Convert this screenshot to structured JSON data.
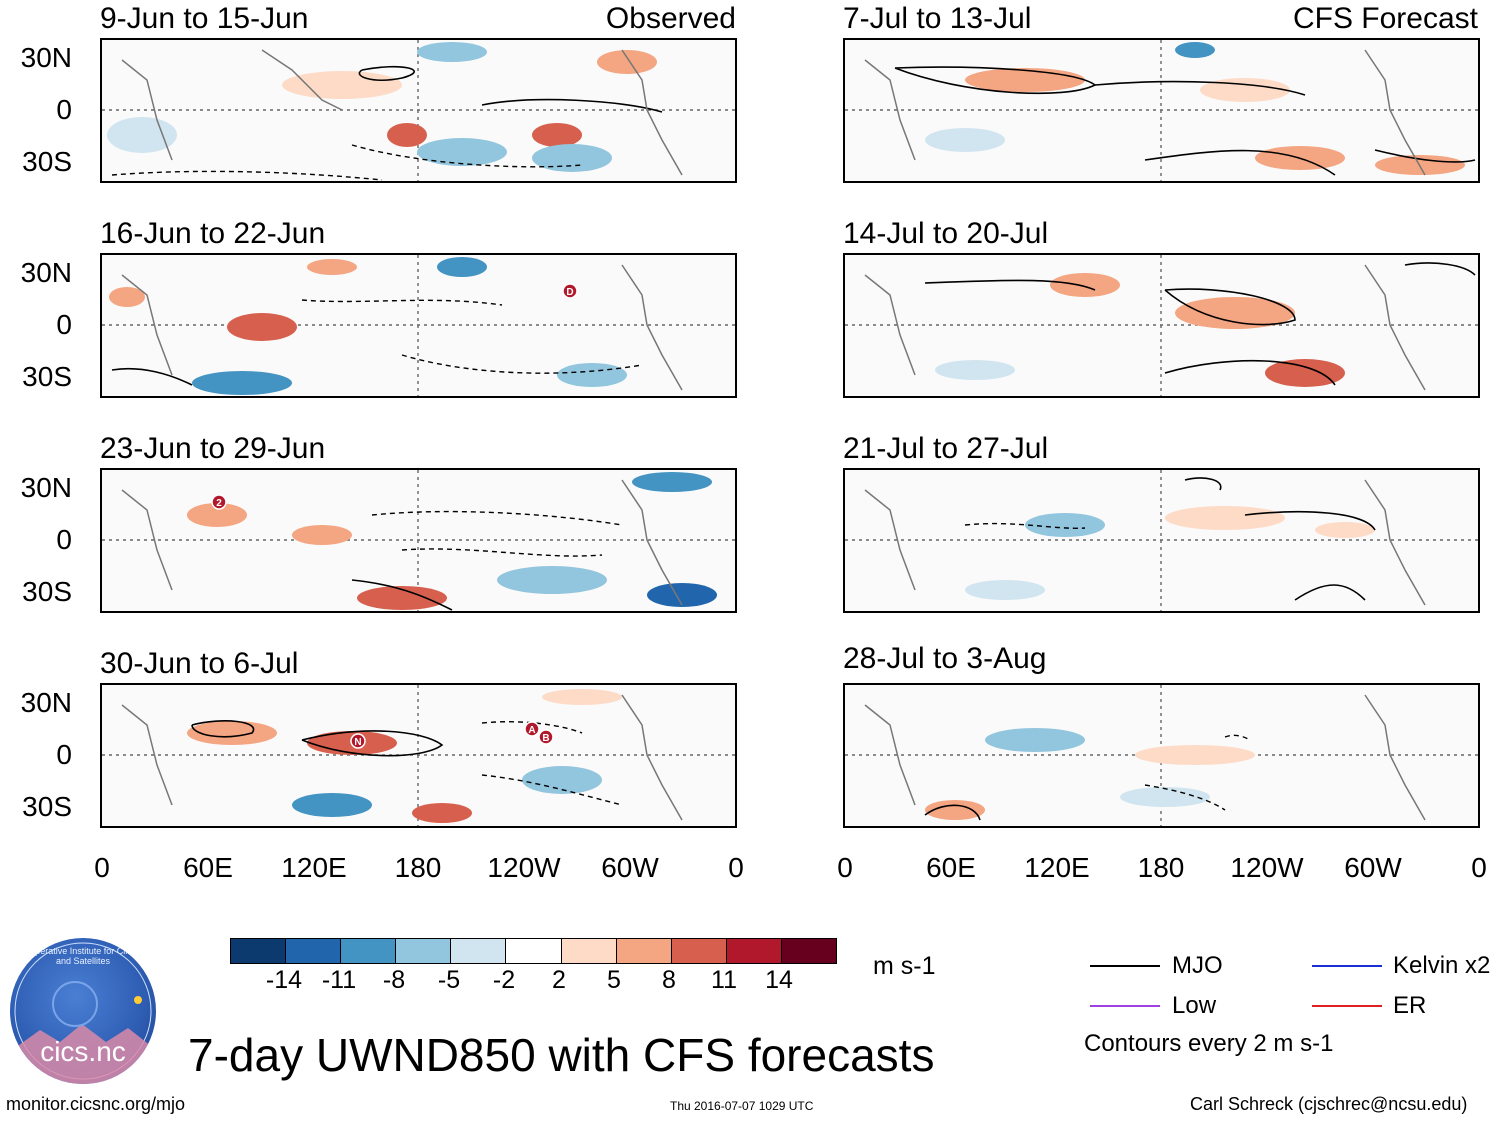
{
  "units": "m s-1",
  "main_title": "7-day UWND850 with CFS forecasts",
  "observed_label": "Observed",
  "forecast_label": "CFS Forecast",
  "lat_labels": [
    "30N",
    "0",
    "30S"
  ],
  "lon_labels": [
    "0",
    "60E",
    "120E",
    "180",
    "120W",
    "60W",
    "0"
  ],
  "left_panels": [
    {
      "title": "9-Jun to 15-Jun"
    },
    {
      "title": "16-Jun to 22-Jun"
    },
    {
      "title": "23-Jun to 29-Jun"
    },
    {
      "title": "30-Jun to 6-Jul"
    }
  ],
  "right_panels": [
    {
      "title": "7-Jul to 13-Jul"
    },
    {
      "title": "14-Jul to 20-Jul"
    },
    {
      "title": "21-Jul to 27-Jul"
    },
    {
      "title": "28-Jul to 3-Aug"
    }
  ],
  "colorbar": {
    "labels": [
      "-14",
      "-11",
      "-8",
      "-5",
      "-2",
      "2",
      "5",
      "8",
      "11",
      "14"
    ],
    "colors": [
      "#0d3a6e",
      "#2166ac",
      "#4393c3",
      "#92c5de",
      "#d1e5f0",
      "#ffffff",
      "#fddbc7",
      "#f4a582",
      "#d6604d",
      "#b2182b",
      "#67001f"
    ]
  },
  "legend": {
    "mjo": "MJO",
    "low": "Low",
    "kelvin": "Kelvin x2",
    "er": "ER",
    "contour_note": "Contours every 2 m s-1",
    "mjo_color": "#000000",
    "low_color": "#a040e0",
    "kelvin_color": "#1a2fd4",
    "er_color": "#e02020"
  },
  "logo_text": "cics.nc",
  "logo_ring_text": "Cooperative Institute for Climate and Satellites",
  "footer": {
    "url": "monitor.cicsnc.org/mjo",
    "timestamp": "Thu 2016-07-07 1029 UTC",
    "author": "Carl Schreck (cjschrec@ncsu.edu)"
  },
  "storm_markers": [
    {
      "label": "D",
      "panel": "left-2"
    },
    {
      "label": "2",
      "panel": "left-3"
    },
    {
      "label": "N",
      "panel": "left-4"
    },
    {
      "label": "A",
      "panel": "left-4"
    },
    {
      "label": "B",
      "panel": "left-4"
    }
  ]
}
